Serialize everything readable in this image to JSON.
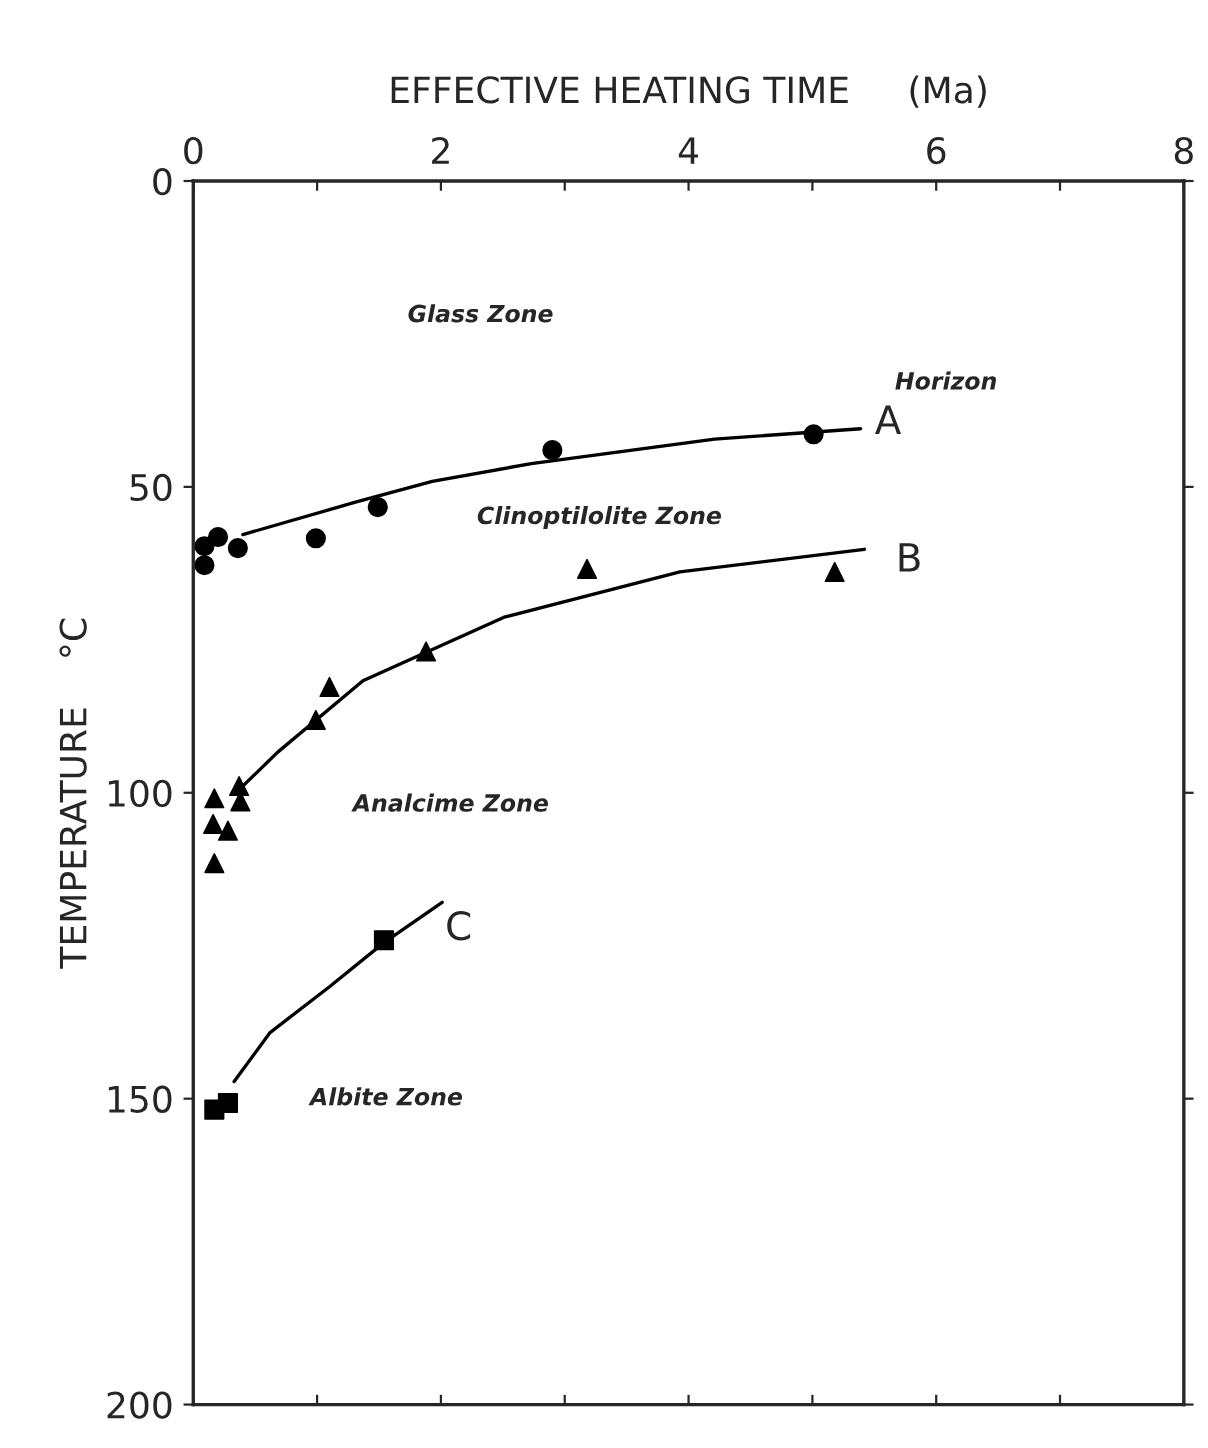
{
  "chart_data": {
    "type": "scatter",
    "xlabel": "EFFECTIVE HEATING TIME     (Ma)",
    "ylabel": "TEMPERATURE    °C",
    "xlim": [
      0,
      8
    ],
    "xticks": [
      0,
      {
        "value": 1,
        "label": null
      },
      2,
      {
        "value": 3,
        "label": null
      },
      4,
      {
        "value": 5,
        "label": null
      },
      6,
      {
        "value": 7,
        "label": null
      },
      8
    ],
    "ylim": [
      200,
      0
    ],
    "yticks": [
      0,
      50,
      100,
      150,
      200
    ],
    "grid": false,
    "legend": false,
    "series": [
      {
        "name": "A",
        "marker": "circle",
        "color": "#000000",
        "x": [
          0.09,
          0.09,
          0.2,
          0.36,
          0.99,
          1.49,
          2.9,
          5.01
        ],
        "values": [
          59.7,
          62.8,
          58.2,
          60.0,
          58.4,
          53.3,
          44.0,
          41.4
        ]
      },
      {
        "type": "line",
        "marker": "none",
        "line_style": "solid",
        "color": "#000000",
        "x": [
          0.4,
          1.31,
          1.93,
          2.73,
          4.21,
          5.39
        ],
        "values": [
          57.8,
          52.5,
          49.1,
          46.2,
          42.2,
          40.5
        ]
      },
      {
        "name": "B",
        "marker": "triangle",
        "color": "#000000",
        "x": [
          3.18,
          5.18,
          1.88,
          1.1,
          0.99,
          0.37,
          0.38,
          0.17,
          0.16,
          0.28,
          0.17
        ],
        "values": [
          63.4,
          63.9,
          76.9,
          82.7,
          88.1,
          98.9,
          101.4,
          100.9,
          105.1,
          106.2,
          111.5
        ]
      },
      {
        "type": "line",
        "marker": "none",
        "line_style": "solid",
        "color": "#000000",
        "x": [
          0.38,
          0.68,
          1.37,
          2.51,
          3.93,
          5.42
        ],
        "values": [
          99.3,
          93.4,
          81.7,
          71.3,
          63.9,
          60.2
        ]
      },
      {
        "name": "C",
        "marker": "square",
        "color": "#000000",
        "x": [
          1.54,
          0.28,
          0.17
        ],
        "values": [
          124.1,
          150.7,
          151.8
        ]
      },
      {
        "type": "line",
        "marker": "none",
        "line_style": "solid",
        "color": "#000000",
        "x": [
          0.33,
          0.62,
          1.1,
          1.54,
          2.01
        ],
        "values": [
          147.2,
          139.2,
          131.7,
          124.5,
          117.9
        ]
      }
    ],
    "annotations": [
      "Glass Zone",
      "Horizon",
      "Clinoptilolite Zone",
      "Analcime Zone",
      "Albite Zone"
    ]
  }
}
